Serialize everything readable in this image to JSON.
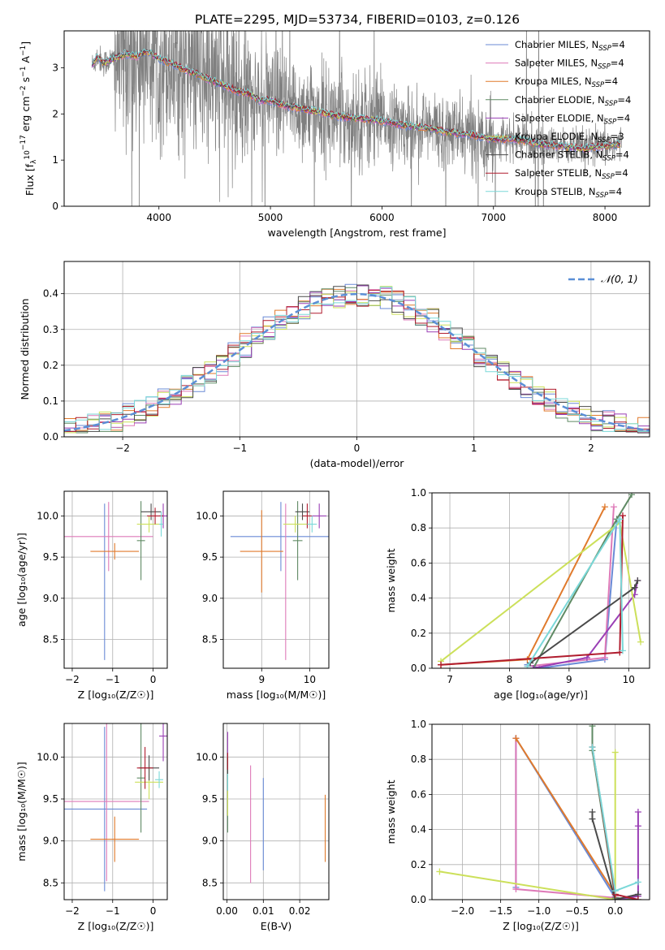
{
  "figure": {
    "title": "PLATE=2295, MJD=53734, FIBERID=0103, z=0.126"
  },
  "colors": {
    "Chabrier MILES": "#6a8ad6",
    "Salpeter MILES": "#de7ab8",
    "Kroupa MILES": "#e07a2c",
    "Chabrier ELODIE": "#5f8a64",
    "Salpeter ELODIE": "#9a3fb5",
    "Kroupa ELODIE": "#cce05a",
    "Chabrier STELIB": "#4a4a4a",
    "Salpeter STELIB": "#b01c2e",
    "Kroupa STELIB": "#7ad8d8",
    "data": "#808080",
    "gaussian": "#5b8fd6"
  },
  "chart_data": [
    {
      "id": "spectrum",
      "type": "line",
      "xlabel": "wavelength [Angstrom, rest frame]",
      "ylabel_parts": [
        "Flux [f",
        "λ",
        "10",
        "−17",
        " erg cm",
        "−2",
        " s",
        "−1",
        " A",
        "−1",
        "]"
      ],
      "xlim": [
        3150,
        8400
      ],
      "ylim": [
        0,
        3.8
      ],
      "xticks": [
        4000,
        5000,
        6000,
        7000,
        8000
      ],
      "yticks": [
        0,
        1,
        2,
        3
      ],
      "legend": [
        {
          "model": "Chabrier MILES",
          "label": "Chabrier MILES, N",
          "sub": "SSP",
          "n": "=4"
        },
        {
          "model": "Salpeter MILES",
          "label": "Salpeter MILES, N",
          "sub": "SSP",
          "n": "=4"
        },
        {
          "model": "Kroupa MILES",
          "label": "Kroupa MILES, N",
          "sub": "SSP",
          "n": "=4"
        },
        {
          "model": "Chabrier ELODIE",
          "label": "Chabrier ELODIE, N",
          "sub": "SSP",
          "n": "=4"
        },
        {
          "model": "Salpeter ELODIE",
          "label": "Salpeter ELODIE, N",
          "sub": "SSP",
          "n": "=4"
        },
        {
          "model": "Kroupa ELODIE",
          "label": "Kroupa ELODIE, N",
          "sub": "SSP",
          "n": "=3"
        },
        {
          "model": "Chabrier STELIB",
          "label": "Chabrier STELIB, N",
          "sub": "SSP",
          "n": "=4"
        },
        {
          "model": "Salpeter STELIB",
          "label": "Salpeter STELIB, N",
          "sub": "SSP",
          "n": "=4"
        },
        {
          "model": "Kroupa STELIB",
          "label": "Kroupa STELIB, N",
          "sub": "SSP",
          "n": "=4"
        }
      ],
      "legend_location": "upper right",
      "model_continuum": {
        "x": [
          3400,
          3450,
          3500,
          3600,
          3700,
          3800,
          3900,
          4000,
          4100,
          4200,
          4300,
          4400,
          4500,
          4600,
          4700,
          4800,
          4900,
          5000,
          5100,
          5200,
          5400,
          5600,
          5800,
          6000,
          6200,
          6400,
          6600,
          6800,
          7000,
          7200,
          7400,
          7600,
          7800,
          8000,
          8150
        ],
        "y": [
          3.05,
          3.25,
          3.1,
          3.2,
          3.3,
          3.25,
          3.35,
          3.2,
          3.1,
          3.0,
          2.9,
          2.8,
          2.7,
          2.6,
          2.5,
          2.45,
          2.3,
          2.3,
          2.2,
          2.15,
          2.05,
          1.95,
          1.9,
          1.85,
          1.75,
          1.7,
          1.6,
          1.55,
          1.45,
          1.45,
          1.35,
          1.3,
          1.25,
          1.3,
          1.35
        ]
      }
    },
    {
      "id": "residuals",
      "type": "step",
      "xlabel": "(data-model)/error",
      "ylabel": "Normed distribution",
      "xlim": [
        -2.5,
        2.5
      ],
      "ylim": [
        0,
        0.49
      ],
      "xticks": [
        -2,
        -1,
        0,
        1,
        2
      ],
      "yticks": [
        0.0,
        0.1,
        0.2,
        0.3,
        0.4
      ],
      "bin_width": 0.1,
      "grid": true,
      "gaussian_label": "𝒩(0, 1)",
      "gaussian": {
        "mean": 0,
        "sigma": 1
      }
    },
    {
      "id": "age_vs_Z",
      "type": "errorbar",
      "xlabel": "Z [log₁₀(Z/Z☉)]",
      "ylabel": "age  [log₁₀(age/yr)]",
      "xlim": [
        -2.2,
        0.35
      ],
      "ylim": [
        8.15,
        10.3
      ],
      "xticks": [
        -2,
        -1,
        0
      ],
      "yticks": [
        8.5,
        9.0,
        9.5,
        10.0
      ],
      "grid": true,
      "points": [
        {
          "model": "Chabrier MILES",
          "x": -1.2,
          "xerr": 0,
          "y": 9.2,
          "yerr": 0.95
        },
        {
          "model": "Salpeter MILES",
          "x": -1.1,
          "xerr": 1.1,
          "y": 9.75,
          "yerr": 0.42
        },
        {
          "model": "Kroupa MILES",
          "x": -0.95,
          "xerr": 0.6,
          "y": 9.57,
          "yerr": 0.1
        },
        {
          "model": "Chabrier ELODIE",
          "x": -0.3,
          "xerr": 0.1,
          "y": 9.7,
          "yerr": 0.48
        },
        {
          "model": "Salpeter ELODIE",
          "x": 0.25,
          "xerr": 0.1,
          "y": 10.0,
          "yerr": 0.15
        },
        {
          "model": "Kroupa ELODIE",
          "x": -0.1,
          "xerr": 0.3,
          "y": 9.9,
          "yerr": 0.1
        },
        {
          "model": "Chabrier STELIB",
          "x": -0.05,
          "xerr": 0.25,
          "y": 10.05,
          "yerr": 0.1
        },
        {
          "model": "Salpeter STELIB",
          "x": 0.05,
          "xerr": 0.2,
          "y": 10.0,
          "yerr": 0.1
        },
        {
          "model": "Kroupa STELIB",
          "x": 0.2,
          "xerr": 0.05,
          "y": 9.9,
          "yerr": 0.15
        }
      ]
    },
    {
      "id": "age_vs_mass",
      "type": "errorbar",
      "xlabel": "mass [log₁₀(M/M☉)]",
      "ylabel": "",
      "xlim": [
        8.2,
        10.4
      ],
      "ylim": [
        8.15,
        10.3
      ],
      "xticks": [
        9,
        10
      ],
      "yticks": [
        8.5,
        9.0,
        9.5,
        10.0
      ],
      "grid": true,
      "points": [
        {
          "model": "Chabrier MILES",
          "x": 9.4,
          "xerr": 1.05,
          "y": 9.75,
          "yerr": 0.42
        },
        {
          "model": "Salpeter MILES",
          "x": 9.5,
          "xerr": 0,
          "y": 9.2,
          "yerr": 0.95
        },
        {
          "model": "Kroupa MILES",
          "x": 9.0,
          "xerr": 0.45,
          "y": 9.57,
          "yerr": 0.5
        },
        {
          "model": "Chabrier ELODIE",
          "x": 9.75,
          "xerr": 0.1,
          "y": 9.7,
          "yerr": 0.48
        },
        {
          "model": "Salpeter ELODIE",
          "x": 10.2,
          "xerr": 0.15,
          "y": 10.0,
          "yerr": 0.15
        },
        {
          "model": "Kroupa ELODIE",
          "x": 9.7,
          "xerr": 0.25,
          "y": 9.9,
          "yerr": 0.1
        },
        {
          "model": "Chabrier STELIB",
          "x": 9.85,
          "xerr": 0.15,
          "y": 10.05,
          "yerr": 0.1
        },
        {
          "model": "Salpeter STELIB",
          "x": 9.95,
          "xerr": 0.1,
          "y": 10.0,
          "yerr": 0.15
        },
        {
          "model": "Kroupa STELIB",
          "x": 10.05,
          "xerr": 0.1,
          "y": 9.9,
          "yerr": 0.1
        }
      ]
    },
    {
      "id": "mass_weight_vs_age",
      "type": "line",
      "xlabel": "age  [log₁₀(age/yr)]",
      "ylabel": "mass weight",
      "xlim": [
        6.7,
        10.35
      ],
      "ylim": [
        0,
        1
      ],
      "xticks": [
        7,
        8,
        9,
        10
      ],
      "yticks": [
        0.0,
        0.2,
        0.4,
        0.6,
        0.8,
        1.0
      ],
      "grid": true,
      "series": [
        {
          "model": "Chabrier MILES",
          "x": [
            8.3,
            8.5,
            9.6,
            9.8
          ],
          "y": [
            0.02,
            0.0,
            0.05,
            0.85
          ]
        },
        {
          "model": "Salpeter MILES",
          "x": [
            8.3,
            9.6,
            9.75
          ],
          "y": [
            0.01,
            0.06,
            0.92
          ]
        },
        {
          "model": "Kroupa MILES",
          "x": [
            6.85,
            8.3,
            9.6
          ],
          "y": [
            0.02,
            0.05,
            0.92
          ]
        },
        {
          "model": "Chabrier ELODIE",
          "x": [
            8.4,
            9.8,
            10.05
          ],
          "y": [
            0.0,
            0.85,
            0.99
          ]
        },
        {
          "model": "Salpeter ELODIE",
          "x": [
            8.4,
            9.3,
            10.1,
            10.15
          ],
          "y": [
            0.0,
            0.06,
            0.42,
            0.5
          ]
        },
        {
          "model": "Kroupa ELODIE",
          "x": [
            6.85,
            9.85,
            10.2
          ],
          "y": [
            0.04,
            0.83,
            0.15
          ]
        },
        {
          "model": "Chabrier STELIB",
          "x": [
            8.35,
            10.1,
            10.15
          ],
          "y": [
            0.03,
            0.46,
            0.5
          ]
        },
        {
          "model": "Salpeter STELIB",
          "x": [
            6.85,
            9.85,
            9.9
          ],
          "y": [
            0.02,
            0.09,
            0.87
          ]
        },
        {
          "model": "Kroupa STELIB",
          "x": [
            8.3,
            9.85,
            9.9
          ],
          "y": [
            0.01,
            0.85,
            0.1
          ]
        }
      ]
    },
    {
      "id": "mass_vs_Z",
      "type": "errorbar",
      "xlabel": "Z [log₁₀(Z/Z☉)]",
      "ylabel": "mass [log₁₀(M/M☉)]",
      "xlim": [
        -2.2,
        0.35
      ],
      "ylim": [
        8.3,
        10.4
      ],
      "xticks": [
        -2,
        -1,
        0
      ],
      "yticks": [
        8.5,
        9.0,
        9.5,
        10.0
      ],
      "grid": true,
      "points": [
        {
          "model": "Chabrier MILES",
          "x": -1.2,
          "xerr": 1.05,
          "y": 9.38,
          "yerr": 0.98
        },
        {
          "model": "Salpeter MILES",
          "x": -1.15,
          "xerr": 1.05,
          "y": 9.47,
          "yerr": 0.95
        },
        {
          "model": "Kroupa MILES",
          "x": -0.95,
          "xerr": 0.6,
          "y": 9.02,
          "yerr": 0.27
        },
        {
          "model": "Chabrier ELODIE",
          "x": -0.3,
          "xerr": 0.1,
          "y": 9.75,
          "yerr": 0.65
        },
        {
          "model": "Salpeter ELODIE",
          "x": 0.25,
          "xerr": 0.1,
          "y": 10.25,
          "yerr": 0.3
        },
        {
          "model": "Kroupa ELODIE",
          "x": -0.1,
          "xerr": 0.35,
          "y": 9.7,
          "yerr": 0.2
        },
        {
          "model": "Chabrier STELIB",
          "x": -0.1,
          "xerr": 0.25,
          "y": 9.87,
          "yerr": 0.15
        },
        {
          "model": "Salpeter STELIB",
          "x": -0.2,
          "xerr": 0.2,
          "y": 9.87,
          "yerr": 0.25
        },
        {
          "model": "Kroupa STELIB",
          "x": 0.15,
          "xerr": 0.1,
          "y": 9.73,
          "yerr": 0.1
        }
      ]
    },
    {
      "id": "mass_vs_EBV",
      "type": "errorbar",
      "xlabel": "E(B-V)",
      "ylabel": "",
      "xlim": [
        -0.001,
        0.028
      ],
      "ylim": [
        8.3,
        10.4
      ],
      "xticks": [
        0.0,
        0.01,
        0.02
      ],
      "yticks": [
        8.5,
        9.0,
        9.5,
        10.0
      ],
      "grid": true,
      "points": [
        {
          "model": "Chabrier MILES",
          "x": 0.01,
          "xerr": 0,
          "y": 9.2,
          "yerr": 0.55
        },
        {
          "model": "Salpeter MILES",
          "x": 0.0065,
          "xerr": 0,
          "y": 9.2,
          "yerr": 0.7
        },
        {
          "model": "Kroupa MILES",
          "x": 0.027,
          "xerr": 0,
          "y": 9.15,
          "yerr": 0.4
        },
        {
          "model": "Chabrier ELODIE",
          "x": 0.0002,
          "xerr": 0,
          "y": 9.55,
          "yerr": 0.45
        },
        {
          "model": "Salpeter ELODIE",
          "x": 0.0002,
          "xerr": 0,
          "y": 10.15,
          "yerr": 0.15
        },
        {
          "model": "Kroupa ELODIE",
          "x": 0.0002,
          "xerr": 0,
          "y": 9.45,
          "yerr": 0.15
        },
        {
          "model": "Chabrier STELIB",
          "x": 0.0002,
          "xerr": 0,
          "y": 9.9,
          "yerr": 0.1
        },
        {
          "model": "Salpeter STELIB",
          "x": 0.0002,
          "xerr": 0,
          "y": 9.95,
          "yerr": 0.1
        },
        {
          "model": "Kroupa STELIB",
          "x": 0.0002,
          "xerr": 0,
          "y": 9.7,
          "yerr": 0.1
        }
      ]
    },
    {
      "id": "mass_weight_vs_Z",
      "type": "line",
      "xlabel": "Z [log₁₀(Z/Z☉)]",
      "ylabel": "mass weight",
      "xlim": [
        -2.4,
        0.45
      ],
      "ylim": [
        0,
        1
      ],
      "xticks": [
        -2.0,
        -1.5,
        -1.0,
        -0.5,
        0.0
      ],
      "yticks": [
        0.0,
        0.2,
        0.4,
        0.6,
        0.8,
        1.0
      ],
      "grid": true,
      "series": [
        {
          "model": "Chabrier MILES",
          "x": [
            -1.3,
            -1.3,
            0.0
          ],
          "y": [
            0.07,
            0.92,
            0.01
          ]
        },
        {
          "model": "Salpeter MILES",
          "x": [
            -1.3,
            -1.3,
            0.0,
            0.0
          ],
          "y": [
            0.92,
            0.06,
            0.01,
            0.02
          ]
        },
        {
          "model": "Kroupa MILES",
          "x": [
            -1.3,
            0.0,
            0.0
          ],
          "y": [
            0.92,
            0.03,
            0.01
          ]
        },
        {
          "model": "Chabrier ELODIE",
          "x": [
            -0.3,
            -0.3,
            0.0,
            0.3
          ],
          "y": [
            0.99,
            0.85,
            0.01,
            0.0
          ]
        },
        {
          "model": "Salpeter ELODIE",
          "x": [
            0.3,
            0.3,
            0.3,
            0.0,
            0.3
          ],
          "y": [
            0.5,
            0.42,
            0.03,
            0.0,
            0.02
          ]
        },
        {
          "model": "Kroupa ELODIE",
          "x": [
            -2.3,
            0.0,
            0.0
          ],
          "y": [
            0.16,
            0.0,
            0.84
          ]
        },
        {
          "model": "Chabrier STELIB",
          "x": [
            -0.3,
            -0.3,
            0.0,
            0.3
          ],
          "y": [
            0.5,
            0.46,
            0.0,
            0.03
          ]
        },
        {
          "model": "Salpeter STELIB",
          "x": [
            -0.3,
            0.0,
            0.3
          ],
          "y": [
            0.87,
            0.03,
            0.0
          ]
        },
        {
          "model": "Kroupa STELIB",
          "x": [
            -0.3,
            0.0,
            0.3
          ],
          "y": [
            0.87,
            0.05,
            0.1
          ]
        }
      ]
    }
  ]
}
